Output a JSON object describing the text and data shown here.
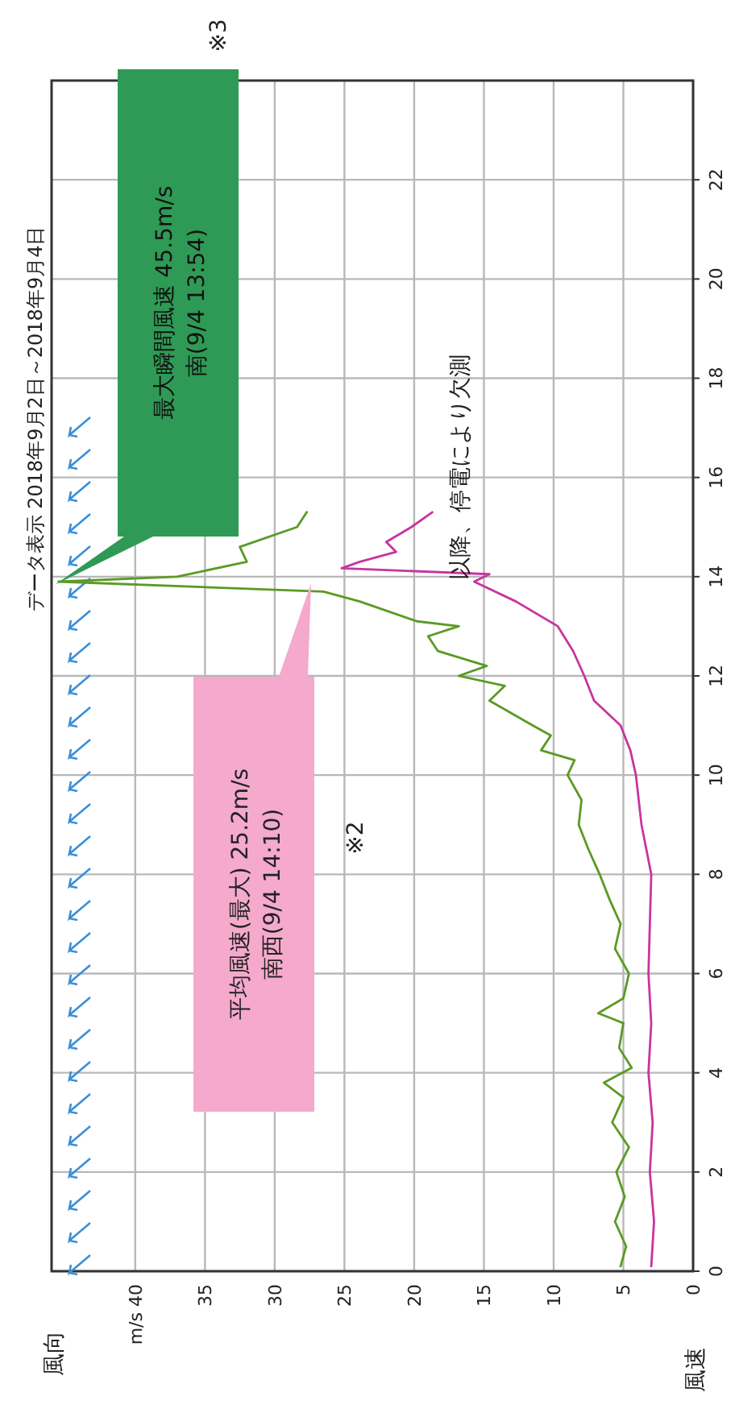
{
  "chart_data": {
    "type": "line",
    "orientation": "horizontal",
    "title": "データ表示 2018年9月2日～2018年9月4日",
    "xlim": [
      46,
      0
    ],
    "xticks": [
      0,
      5,
      10,
      15,
      20,
      25,
      30,
      35,
      {
        "value": 40,
        "label": "m/s 40"
      }
    ],
    "ylim": [
      0,
      24
    ],
    "yticks": [
      0,
      2,
      4,
      6,
      8,
      10,
      12,
      14,
      16,
      18,
      20,
      22
    ],
    "grid": true,
    "series": [
      {
        "color": "#5b9a24",
        "x": [
          0.1,
          0.5,
          1,
          1.5,
          2,
          2.5,
          3,
          3.5,
          3.8,
          4.1,
          4.5,
          5,
          5.2,
          5.5,
          6,
          6.5,
          7,
          7.5,
          8,
          8.5,
          9,
          9.5,
          10,
          10.3,
          10.5,
          10.8,
          11,
          11.5,
          11.8,
          12,
          12.2,
          12.5,
          12.8,
          13,
          13.1,
          13.5,
          13.7,
          13.9,
          14.0,
          14.3,
          14.6,
          15,
          15.3
        ],
        "values": [
          5.2,
          4.8,
          5.6,
          4.9,
          5.5,
          4.6,
          5.8,
          5.0,
          6.4,
          4.4,
          5.3,
          5.0,
          6.8,
          5.0,
          4.6,
          5.6,
          5.2,
          6.0,
          6.7,
          7.5,
          8.2,
          8.0,
          9.0,
          8.5,
          10.9,
          10.2,
          11.5,
          14.6,
          13.5,
          16.8,
          14.8,
          18.3,
          19.0,
          16.8,
          19.8,
          23.9,
          26.5,
          45.5,
          37,
          32,
          32.5,
          28.4,
          27.7
        ]
      },
      {
        "color": "#c8359f",
        "x": [
          0.1,
          1,
          2,
          3,
          4,
          5,
          6,
          7,
          8,
          9,
          10,
          10.5,
          11,
          11.5,
          12,
          12.5,
          13,
          13.5,
          13.9,
          14.05,
          14.17,
          14.3,
          14.5,
          14.7,
          15,
          15.3
        ],
        "values": [
          3.0,
          2.8,
          3.1,
          2.9,
          3.2,
          3.0,
          3.2,
          3.1,
          3.0,
          3.7,
          4.1,
          4.5,
          5.2,
          7.1,
          7.8,
          8.6,
          9.7,
          12.7,
          15.7,
          14.6,
          25.2,
          23.9,
          21.3,
          22.0,
          20.2,
          18.7
        ]
      }
    ],
    "annotations": [
      "最大瞬間風速 45.5m/s\n南(9/4 13:54)",
      "平均風速(最大) 25.2m/s\n南西(9/4 14:10)",
      "※3",
      "※2",
      "以降、停電により欠測",
      "風向",
      "風速"
    ]
  }
}
